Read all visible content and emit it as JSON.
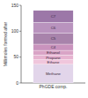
{
  "chart_data": {
    "type": "bar",
    "stacked": true,
    "y_label": "Millimoles formed after",
    "categories": [
      "PhGDE comp."
    ],
    "series": [
      {
        "name": "Methane",
        "color": "#e2d5ea",
        "values": [
          36
        ]
      },
      {
        "name": "Ethane",
        "color": "#f0c6dc",
        "values": [
          9
        ]
      },
      {
        "name": "Propane",
        "color": "#e6b3d0",
        "values": [
          9
        ]
      },
      {
        "name": "Ethanol",
        "color": "#d9a4c6",
        "values": [
          9
        ]
      },
      {
        "name": "C4",
        "color": "#c993bd",
        "values": [
          12
        ]
      },
      {
        "name": "C5",
        "color": "#a883ab",
        "values": [
          21
        ]
      },
      {
        "name": "C6",
        "color": "#b993be",
        "values": [
          21
        ]
      },
      {
        "name": "C7",
        "color": "#9c77a8",
        "values": [
          23
        ]
      }
    ],
    "ylim": [
      0,
      150
    ],
    "yticks": [
      0,
      50,
      100,
      150
    ]
  }
}
